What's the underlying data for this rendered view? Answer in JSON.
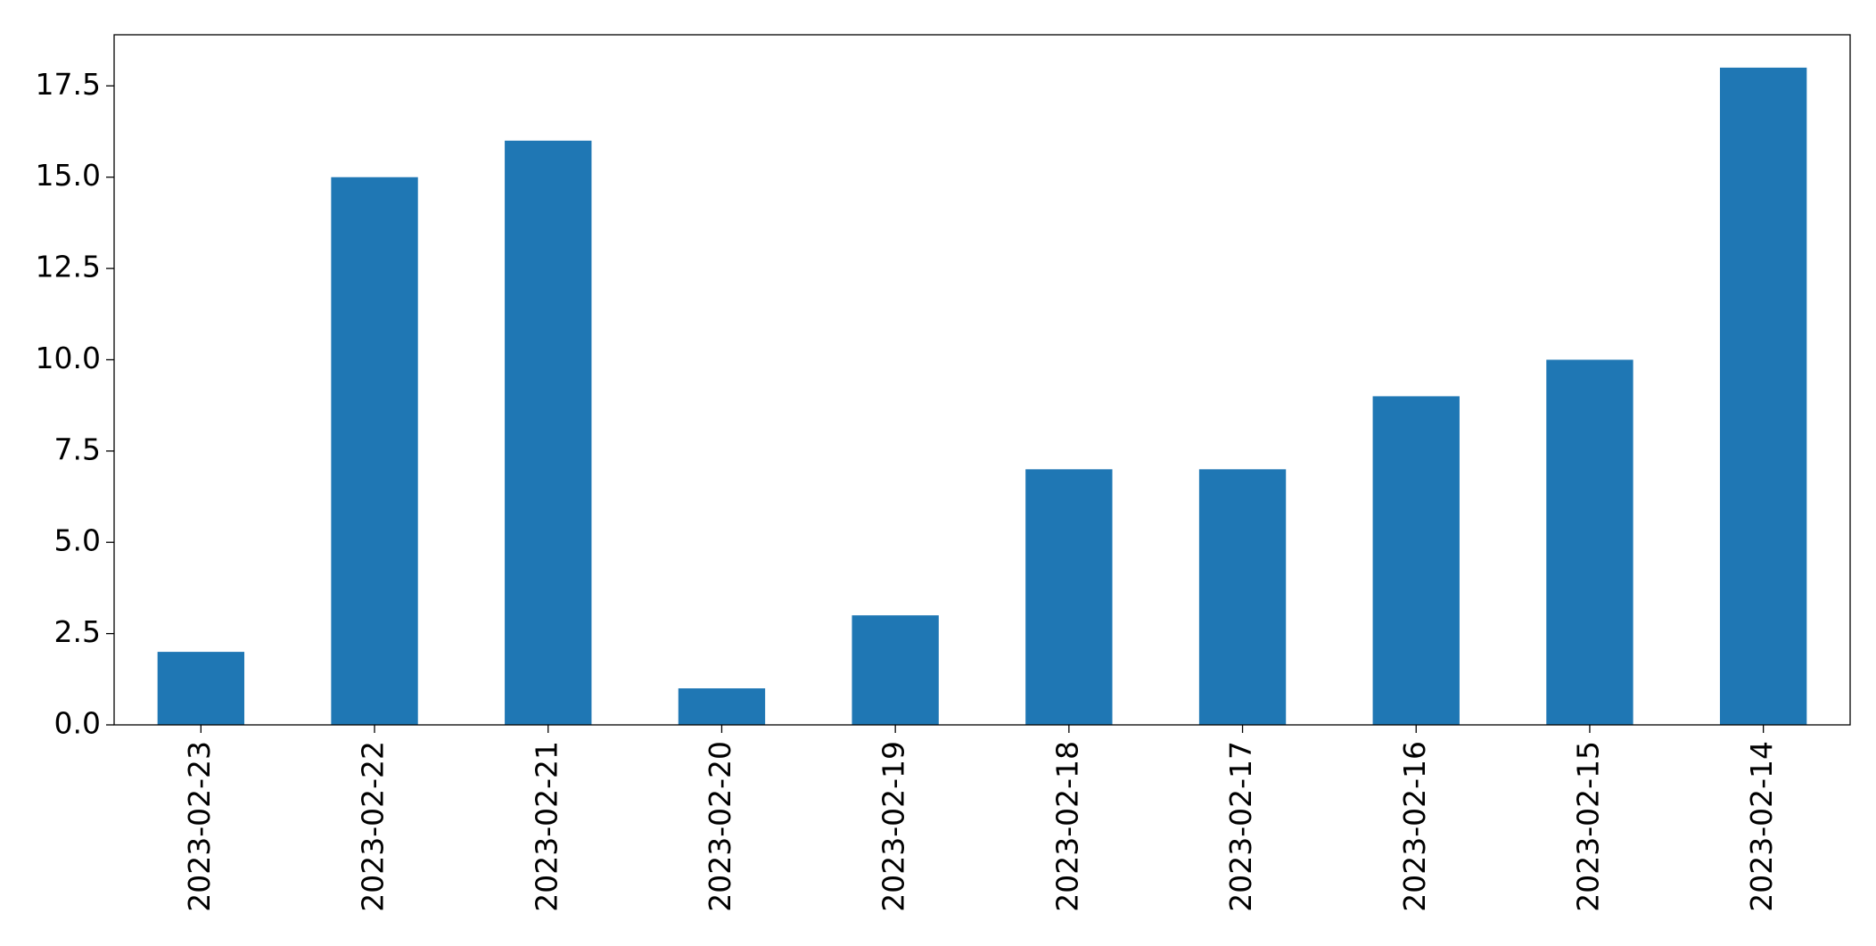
{
  "chart_data": {
    "type": "bar",
    "categories": [
      "2023-02-23",
      "2023-02-22",
      "2023-02-21",
      "2023-02-20",
      "2023-02-19",
      "2023-02-18",
      "2023-02-17",
      "2023-02-16",
      "2023-02-15",
      "2023-02-14"
    ],
    "values": [
      2,
      15,
      16,
      1,
      3,
      7,
      7,
      9,
      10,
      18
    ],
    "color": "#1f77b4",
    "ylim": [
      0,
      18.9
    ],
    "yticks": [
      {
        "value": 0,
        "label": "0.0"
      },
      2.5,
      {
        "value": 5,
        "label": "5.0"
      },
      7.5,
      {
        "value": 10,
        "label": "10.0"
      },
      12.5,
      {
        "value": 15,
        "label": "15.0"
      },
      17.5
    ],
    "grid": false
  }
}
